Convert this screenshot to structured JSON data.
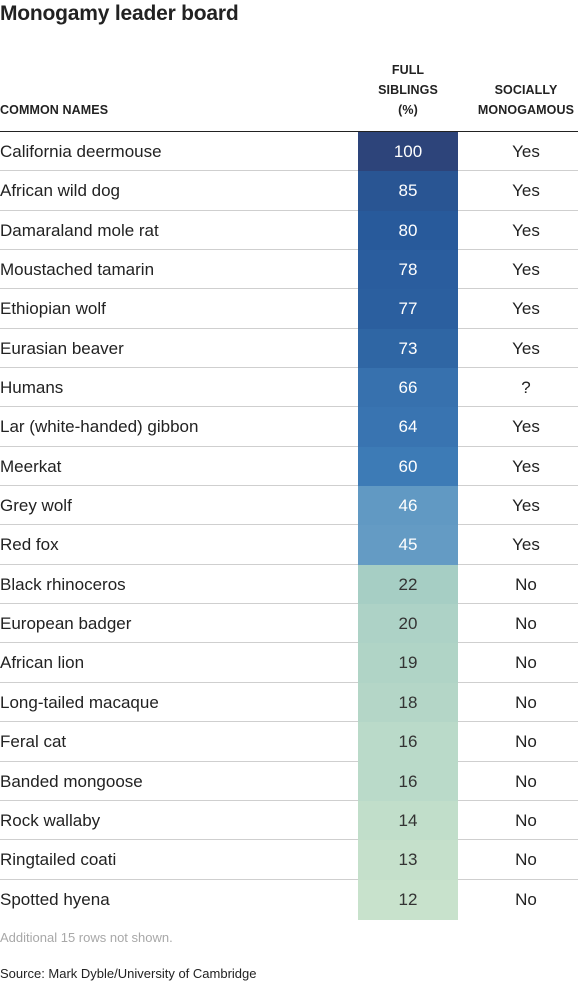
{
  "title": "Monogamy leader board",
  "headers": {
    "names": "COMMON NAMES",
    "siblings": "FULL\nSIBLINGS\n(%)",
    "social": "SOCIALLY\nMONOGAMOUS"
  },
  "colors": {
    "scale_high": "#2a4a80",
    "scale_low": "#c6e0c8",
    "blue_band": "#2b5f9a",
    "green_band": "#b8d9c0"
  },
  "chart_data": {
    "type": "table",
    "columns": [
      "COMMON NAMES",
      "FULL SIBLINGS (%)",
      "SOCIALLY MONOGAMOUS"
    ],
    "rows": [
      {
        "name": "California deermouse",
        "full_siblings": 100,
        "socially_monogamous": "Yes"
      },
      {
        "name": "African wild dog",
        "full_siblings": 85,
        "socially_monogamous": "Yes"
      },
      {
        "name": "Damaraland mole rat",
        "full_siblings": 80,
        "socially_monogamous": "Yes"
      },
      {
        "name": "Moustached tamarin",
        "full_siblings": 78,
        "socially_monogamous": "Yes"
      },
      {
        "name": "Ethiopian wolf",
        "full_siblings": 77,
        "socially_monogamous": "Yes"
      },
      {
        "name": "Eurasian beaver",
        "full_siblings": 73,
        "socially_monogamous": "Yes"
      },
      {
        "name": "Humans",
        "full_siblings": 66,
        "socially_monogamous": "?"
      },
      {
        "name": "Lar (white-handed) gibbon",
        "full_siblings": 64,
        "socially_monogamous": "Yes"
      },
      {
        "name": "Meerkat",
        "full_siblings": 60,
        "socially_monogamous": "Yes"
      },
      {
        "name": "Grey wolf",
        "full_siblings": 46,
        "socially_monogamous": "Yes"
      },
      {
        "name": "Red fox",
        "full_siblings": 45,
        "socially_monogamous": "Yes"
      },
      {
        "name": "Black rhinoceros",
        "full_siblings": 22,
        "socially_monogamous": "No"
      },
      {
        "name": "European badger",
        "full_siblings": 20,
        "socially_monogamous": "No"
      },
      {
        "name": "African lion",
        "full_siblings": 19,
        "socially_monogamous": "No"
      },
      {
        "name": "Long-tailed macaque",
        "full_siblings": 18,
        "socially_monogamous": "No"
      },
      {
        "name": "Feral cat",
        "full_siblings": 16,
        "socially_monogamous": "No"
      },
      {
        "name": "Banded mongoose",
        "full_siblings": 16,
        "socially_monogamous": "No"
      },
      {
        "name": "Rock wallaby",
        "full_siblings": 14,
        "socially_monogamous": "No"
      },
      {
        "name": "Ringtailed coati",
        "full_siblings": 13,
        "socially_monogamous": "No"
      },
      {
        "name": "Spotted hyena",
        "full_siblings": 12,
        "socially_monogamous": "No"
      }
    ]
  },
  "note": "Additional 15 rows not shown.",
  "source": "Source: Mark Dyble/University of Cambridge"
}
